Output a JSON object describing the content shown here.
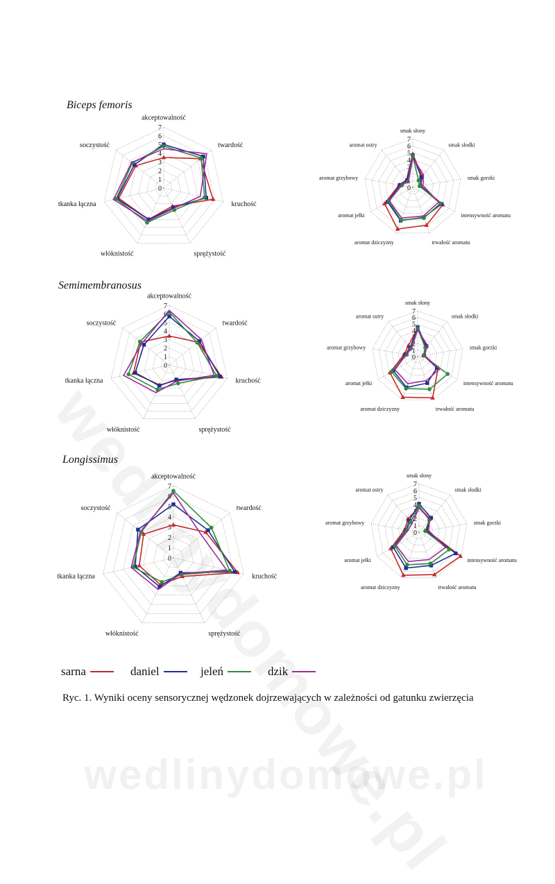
{
  "figure": {
    "caption": "Ryc. 1. Wyniki oceny sensorycznej wędzonek dojrzewających w zależności od gatunku zwierzęcia",
    "watermark": "wedlinydomowe.pl",
    "sections": [
      {
        "title": "Biceps femoris"
      },
      {
        "title": "Semimembranosus"
      },
      {
        "title": "Longissimus"
      }
    ],
    "legend": [
      {
        "label": "sarna",
        "color": "#c62828"
      },
      {
        "label": "daniel",
        "color": "#1f2f8f"
      },
      {
        "label": "jeleń",
        "color": "#2e8b3c"
      },
      {
        "label": "dzik",
        "color": "#9c2a9c"
      }
    ]
  },
  "chart_data": [
    {
      "type": "radar",
      "section": "Biceps femoris",
      "variant": "texture",
      "categories": [
        "akceptowalność",
        "twardość",
        "kruchość",
        "sprężystość",
        "włóknistość",
        "tkanka łączna",
        "soczystość"
      ],
      "rlim": [
        0,
        7
      ],
      "ticks": [
        "0",
        "1",
        "2",
        "3",
        "4",
        "5",
        "6",
        "7"
      ],
      "series": [
        {
          "name": "sarna",
          "color": "#c62828",
          "marker": "triangle",
          "values": [
            3.5,
            5.4,
            5.8,
            2.3,
            4.0,
            5.3,
            4.1
          ]
        },
        {
          "name": "daniel",
          "color": "#1f2f8f",
          "marker": "square",
          "values": [
            5.0,
            5.8,
            5.0,
            2.5,
            4.0,
            5.5,
            4.3
          ]
        },
        {
          "name": "jeleń",
          "color": "#2e8b3c",
          "marker": "circle",
          "values": [
            4.8,
            5.5,
            4.8,
            2.8,
            4.4,
            5.6,
            4.6
          ]
        },
        {
          "name": "dzik",
          "color": "#9c2a9c",
          "marker": "none",
          "values": [
            4.5,
            6.3,
            4.3,
            2.6,
            4.2,
            5.9,
            4.7
          ]
        }
      ]
    },
    {
      "type": "radar",
      "section": "Biceps femoris",
      "variant": "aroma",
      "categories": [
        "smak słony",
        "smak słodki",
        "smak gorzki",
        "intensywność aromatu",
        "trwałość aromatu",
        "aromat dziczyzny",
        "aromat jełki",
        "aromat grzybowy",
        "aromat ostry"
      ],
      "rlim": [
        0,
        7
      ],
      "ticks": [
        "0",
        "1",
        "2",
        "3",
        "4",
        "5",
        "6",
        "7"
      ],
      "series": [
        {
          "name": "sarna",
          "color": "#c62828",
          "marker": "triangle",
          "values": [
            4.8,
            2.1,
            1.2,
            5.0,
            5.8,
            6.4,
            4.7,
            2.0,
            1.4
          ]
        },
        {
          "name": "daniel",
          "color": "#1f2f8f",
          "marker": "square",
          "values": [
            4.6,
            1.9,
            1.1,
            4.8,
            4.6,
            5.1,
            4.2,
            1.9,
            1.3
          ]
        },
        {
          "name": "jeleń",
          "color": "#2e8b3c",
          "marker": "circle",
          "values": [
            4.5,
            1.3,
            1.0,
            4.6,
            4.7,
            5.0,
            4.0,
            1.6,
            1.1
          ]
        },
        {
          "name": "dzik",
          "color": "#9c2a9c",
          "marker": "none",
          "values": [
            4.2,
            2.4,
            1.5,
            4.3,
            4.4,
            4.7,
            3.9,
            1.8,
            1.0
          ]
        }
      ]
    },
    {
      "type": "radar",
      "section": "Semimembranosus",
      "variant": "texture",
      "categories": [
        "akceptowalność",
        "twardość",
        "kruchość",
        "sprężystość",
        "włóknistość",
        "tkanka łączna",
        "soczystość"
      ],
      "rlim": [
        0,
        7
      ],
      "ticks": [
        "0",
        "1",
        "2",
        "3",
        "4",
        "5",
        "6",
        "7"
      ],
      "series": [
        {
          "name": "sarna",
          "color": "#c62828",
          "marker": "triangle",
          "values": [
            3.4,
            4.3,
            6.3,
            2.0,
            2.6,
            4.3,
            4.3
          ]
        },
        {
          "name": "daniel",
          "color": "#1f2f8f",
          "marker": "square",
          "values": [
            5.7,
            4.5,
            6.1,
            1.9,
            2.7,
            4.1,
            3.8
          ]
        },
        {
          "name": "jeleń",
          "color": "#2e8b3c",
          "marker": "circle",
          "values": [
            6.2,
            4.2,
            5.7,
            2.4,
            3.2,
            4.9,
            4.4
          ]
        },
        {
          "name": "dzik",
          "color": "#9c2a9c",
          "marker": "none",
          "values": [
            6.4,
            4.8,
            5.4,
            2.1,
            3.6,
            5.5,
            4.1
          ]
        }
      ]
    },
    {
      "type": "radar",
      "section": "Semimembranosus",
      "variant": "aroma",
      "categories": [
        "smak słony",
        "smak słodki",
        "smak gorzki",
        "intensywność aromatu",
        "trwałość aromatu",
        "aromat dziczyzny",
        "aromat jełki",
        "aromat grzybowy",
        "aromat ostry"
      ],
      "rlim": [
        0,
        7
      ],
      "ticks": [
        "0",
        "1",
        "2",
        "3",
        "4",
        "5",
        "6",
        "7"
      ],
      "series": [
        {
          "name": "sarna",
          "color": "#c62828",
          "marker": "triangle",
          "values": [
            4.4,
            2.0,
            0.9,
            3.6,
            6.7,
            6.6,
            4.9,
            2.1,
            2.2
          ]
        },
        {
          "name": "daniel",
          "color": "#1f2f8f",
          "marker": "square",
          "values": [
            4.5,
            2.1,
            1.0,
            3.4,
            4.3,
            5.0,
            4.3,
            1.9,
            1.8
          ]
        },
        {
          "name": "jeleń",
          "color": "#2e8b3c",
          "marker": "circle",
          "values": [
            4.3,
            1.8,
            0.9,
            5.3,
            5.3,
            5.2,
            4.6,
            1.7,
            1.6
          ]
        },
        {
          "name": "dzik",
          "color": "#9c2a9c",
          "marker": "none",
          "values": [
            4.1,
            2.3,
            1.1,
            3.8,
            3.9,
            4.4,
            4.0,
            1.8,
            1.5
          ]
        }
      ]
    },
    {
      "type": "radar",
      "section": "Longissimus",
      "variant": "texture",
      "categories": [
        "akceptowalność",
        "twardość",
        "kruchość",
        "sprężystość",
        "włóknistość",
        "tkanka łączna",
        "soczystość"
      ],
      "rlim": [
        0,
        7
      ],
      "ticks": [
        "0",
        "1",
        "2",
        "3",
        "4",
        "5",
        "6",
        "7"
      ],
      "series": [
        {
          "name": "sarna",
          "color": "#c62828",
          "marker": "triangle",
          "values": [
            3.2,
            4.0,
            6.4,
            2.0,
            2.9,
            3.4,
            3.7
          ]
        },
        {
          "name": "daniel",
          "color": "#1f2f8f",
          "marker": "square",
          "values": [
            5.2,
            4.3,
            6.1,
            1.6,
            3.1,
            3.8,
            4.4
          ]
        },
        {
          "name": "jeleń",
          "color": "#2e8b3c",
          "marker": "circle",
          "values": [
            6.5,
            4.7,
            5.6,
            1.8,
            2.6,
            4.0,
            4.0
          ]
        },
        {
          "name": "dzik",
          "color": "#9c2a9c",
          "marker": "none",
          "values": [
            6.3,
            3.5,
            5.3,
            1.7,
            3.4,
            4.2,
            4.1
          ]
        }
      ]
    },
    {
      "type": "radar",
      "section": "Longissimus",
      "variant": "aroma",
      "categories": [
        "smak słony",
        "smak słodki",
        "smak gorzki",
        "intensywność aromatu",
        "trwałość aromatu",
        "aromat dziczyzny",
        "aromat jełki",
        "aromat grzybowy",
        "aromat ostry"
      ],
      "rlim": [
        0,
        7
      ],
      "ticks": [
        "0",
        "1",
        "2",
        "3",
        "4",
        "5",
        "6",
        "7"
      ],
      "series": [
        {
          "name": "sarna",
          "color": "#c62828",
          "marker": "triangle",
          "values": [
            3.6,
            2.5,
            1.2,
            6.9,
            6.5,
            6.6,
            4.7,
            2.1,
            2.5
          ]
        },
        {
          "name": "daniel",
          "color": "#1f2f8f",
          "marker": "square",
          "values": [
            4.1,
            2.7,
            1.0,
            6.1,
            5.1,
            5.5,
            4.3,
            1.9,
            2.2
          ]
        },
        {
          "name": "jeleń",
          "color": "#2e8b3c",
          "marker": "circle",
          "values": [
            3.8,
            2.3,
            0.9,
            5.0,
            4.8,
            5.0,
            4.0,
            1.8,
            1.9
          ]
        },
        {
          "name": "dzik",
          "color": "#9c2a9c",
          "marker": "none",
          "values": [
            3.5,
            2.4,
            1.4,
            4.4,
            4.2,
            4.5,
            3.8,
            1.6,
            1.6
          ]
        }
      ]
    }
  ]
}
